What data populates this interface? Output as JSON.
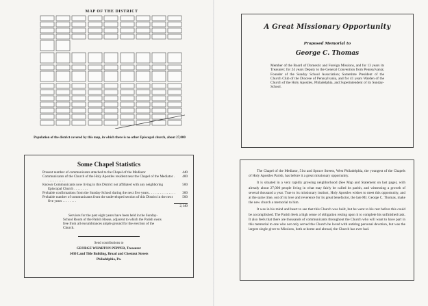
{
  "left_page": {
    "map": {
      "title": "MAP OF THE DISTRICT",
      "caption": "Population of the district covered by this map, in which there is no other Episcopal church, about 27,000"
    },
    "stats": {
      "title": "Some Chapel Statistics",
      "rows": [
        {
          "label": "Present number of communicants attached to the Chapel of the Mediator",
          "value": "440"
        },
        {
          "label": "Communicants of the Church of the Holy Apostles resident near the Chapel of the Mediator . . . . . . . . . . .",
          "value": "400"
        },
        {
          "label": "Known Communicants now living in this District not affiliated with any neighboring Episcopal Church . . . . . . . .",
          "value": "500"
        },
        {
          "label": "Probable confirmations from the Sunday-School during the next five years . . . . . . . . . . . . . . .",
          "value": "300"
        },
        {
          "label": "Probable number of communicants from the undeveloped section of this District in the next five years . . . . . . . .",
          "value": "500"
        }
      ],
      "total": "2,140",
      "services": "Services for the past eight years have been held in the Sunday-School Room of the Parish House, adjacent to which the Parish owns free from all encumbrances ample ground for the erection of the Church.",
      "send_to": "Send contributions to",
      "treasurer": "GEORGE WHARTON PEPPER, Treasurer",
      "address": "1430 Land Title Building, Broad and Chestnut Streets",
      "city": "Philadelphia, Pa."
    }
  },
  "right_page": {
    "title": "A Great Missionary Opportunity",
    "subtitle": "Proposed Memorial to",
    "name": "George C. Thomas",
    "bio": "Member of the Board of Domestic and Foreign Missions, and for 13 years its Treasurer; for 24 years Deputy to the General Convention from Pennsylvania; Founder of the Sunday School Association; Sometime President of the Church Club of the Diocese of Pennsylvania, and for 41 years Warden of the Church of the Holy Apostles, Philadelphia, and Superintendent of its Sunday-School.",
    "paragraphs": [
      "The Chapel of the Mediator, 51st and Spruce Streets, West Philadelphia, the youngest of the Chapels of Holy Apostles Parish, has before it a great missionary opportunity.",
      "It is situated in a very rapidly growing neighborhood (See Map and Statement on last page), with already about 27,000 people living in what may fairly be called its parish, and witnessing a growth of several thousand a year. True to its missionary instinct, Holy Apostles wishes to meet this opportunity, and at the same time, out of its love and reverence for its great benefactor, the late Mr. George C. Thomas, make the new church a memorial to him.",
      "It was in his mind and heart to see that this Church was built, but he went to his rest before this could be accomplished. The Parish feels a high sense of obligation resting upon it to complete his unfinished task. It also feels that there are thousands of communicants throughout the Church who will want to have part in this memorial to one who not only served the Church he loved with untiring personal devotion, but was the largest single giver to Missions, both at home and abroad, the Church has ever had."
    ]
  }
}
